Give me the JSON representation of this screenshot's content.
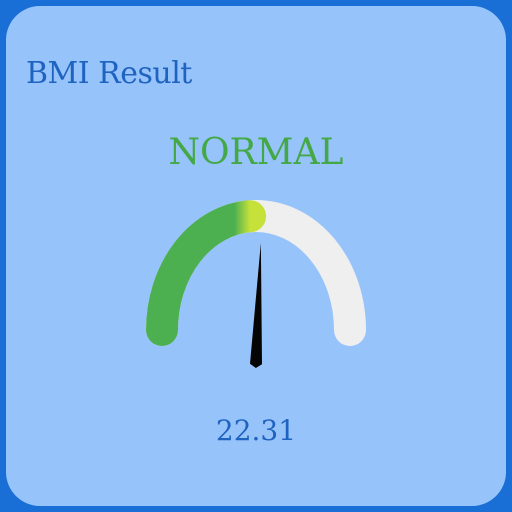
{
  "title": "BMI Result",
  "status": "NORMAL",
  "bmi_value": "22.31",
  "gauge": {
    "fill_fraction": 0.48,
    "needle_fraction": 0.52
  },
  "colors": {
    "background_border": "#1a6fd6",
    "card": "#97c3fb",
    "title_text": "#1f63c0",
    "status_text": "#43a845",
    "gauge_fill_start": "#4caf50",
    "gauge_fill_end": "#c6e23a",
    "gauge_track": "#efefef",
    "needle": "#050505"
  }
}
